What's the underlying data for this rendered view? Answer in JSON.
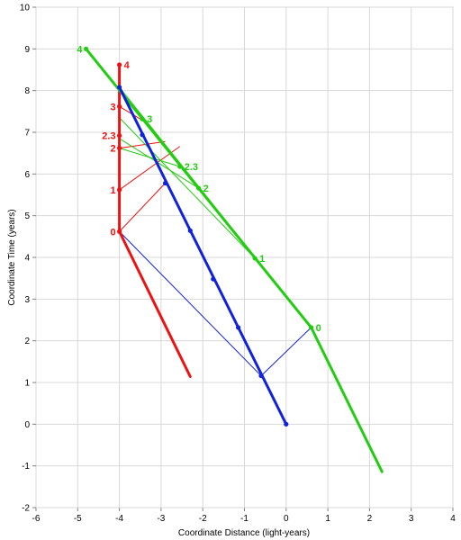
{
  "chart_data": {
    "type": "line",
    "xlabel": "Coordinate Distance (light-years)",
    "ylabel": "Coordinate Time (years)",
    "xlim": [
      -6,
      4
    ],
    "ylim": [
      -2,
      10
    ],
    "x_ticks": [
      "-6",
      "-5",
      "-4",
      "-3",
      "-2",
      "-1",
      "0",
      "1",
      "2",
      "3",
      "4"
    ],
    "y_ticks": [
      "-2",
      "-1",
      "0",
      "1",
      "2",
      "3",
      "4",
      "5",
      "6",
      "7",
      "8",
      "9",
      "10"
    ],
    "grid": true,
    "colors": {
      "red": "#ee1111",
      "green": "#22cc11",
      "blue": "#1122dd",
      "grid": "#d8d8d8"
    },
    "series": [
      {
        "color": "red",
        "points": [
          [
            -4.0,
            4.62
          ],
          [
            -4.0,
            8.62
          ]
        ]
      },
      {
        "color": "red",
        "points": [
          [
            -4.0,
            4.62
          ],
          [
            -2.3,
            1.14
          ]
        ]
      },
      {
        "color": "green",
        "points": [
          [
            2.3,
            -1.14
          ],
          [
            0.6,
            2.32
          ],
          [
            -4.8,
            9.0
          ]
        ]
      },
      {
        "color": "blue",
        "points": [
          [
            0.0,
            0.0
          ],
          [
            -4.0,
            8.08
          ]
        ]
      }
    ],
    "thin_lines": [
      {
        "color": "blue",
        "points": [
          [
            -4.0,
            4.62
          ],
          [
            -0.6,
            1.16
          ]
        ]
      },
      {
        "color": "blue",
        "points": [
          [
            -0.6,
            1.16
          ],
          [
            0.6,
            2.32
          ]
        ]
      },
      {
        "color": "red",
        "points": [
          [
            -4.0,
            4.62
          ],
          [
            -2.9,
            5.78
          ]
        ]
      },
      {
        "color": "red",
        "points": [
          [
            -4.0,
            5.62
          ],
          [
            -2.55,
            6.66
          ]
        ]
      },
      {
        "color": "red",
        "points": [
          [
            -4.0,
            6.62
          ],
          [
            -2.9,
            6.78
          ]
        ]
      },
      {
        "color": "red",
        "points": [
          [
            -4.0,
            7.62
          ],
          [
            -3.5,
            7.32
          ]
        ]
      },
      {
        "color": "green",
        "points": [
          [
            0.6,
            2.32
          ],
          [
            -4.0,
            8.08
          ]
        ]
      },
      {
        "color": "green",
        "points": [
          [
            -0.75,
            3.98
          ],
          [
            -4.0,
            7.35
          ]
        ]
      },
      {
        "color": "green",
        "points": [
          [
            -2.1,
            5.66
          ],
          [
            -4.0,
            6.85
          ]
        ]
      },
      {
        "color": "green",
        "points": [
          [
            -2.55,
            6.18
          ],
          [
            -4.0,
            6.62
          ]
        ]
      }
    ],
    "points": [
      {
        "color": "red",
        "x": -4.0,
        "y": 4.62,
        "label": "0",
        "side": "left"
      },
      {
        "color": "red",
        "x": -4.0,
        "y": 5.62,
        "label": "1",
        "side": "left"
      },
      {
        "color": "red",
        "x": -4.0,
        "y": 6.62,
        "label": "2",
        "side": "left"
      },
      {
        "color": "red",
        "x": -4.0,
        "y": 6.92,
        "label": "2.3",
        "side": "left"
      },
      {
        "color": "red",
        "x": -4.0,
        "y": 7.62,
        "label": "3",
        "side": "left"
      },
      {
        "color": "red",
        "x": -4.0,
        "y": 8.62,
        "label": "4",
        "side": "right"
      },
      {
        "color": "green",
        "x": 0.6,
        "y": 2.32,
        "label": "0",
        "side": "right"
      },
      {
        "color": "green",
        "x": -0.75,
        "y": 3.98,
        "label": "1",
        "side": "right"
      },
      {
        "color": "green",
        "x": -2.1,
        "y": 5.66,
        "label": "2",
        "side": "right"
      },
      {
        "color": "green",
        "x": -2.55,
        "y": 6.18,
        "label": "2.3",
        "side": "right"
      },
      {
        "color": "green",
        "x": -3.45,
        "y": 7.32,
        "label": "3",
        "side": "right"
      },
      {
        "color": "green",
        "x": -4.8,
        "y": 9.0,
        "label": "4",
        "side": "left"
      },
      {
        "color": "blue",
        "x": 0.0,
        "y": 0.0
      },
      {
        "color": "blue",
        "x": -0.6,
        "y": 1.16
      },
      {
        "color": "blue",
        "x": -1.15,
        "y": 2.32
      },
      {
        "color": "blue",
        "x": -1.75,
        "y": 3.48
      },
      {
        "color": "blue",
        "x": -2.3,
        "y": 4.64
      },
      {
        "color": "blue",
        "x": -2.9,
        "y": 5.78
      },
      {
        "color": "blue",
        "x": -3.45,
        "y": 6.94
      },
      {
        "color": "blue",
        "x": -4.0,
        "y": 8.08
      }
    ]
  }
}
